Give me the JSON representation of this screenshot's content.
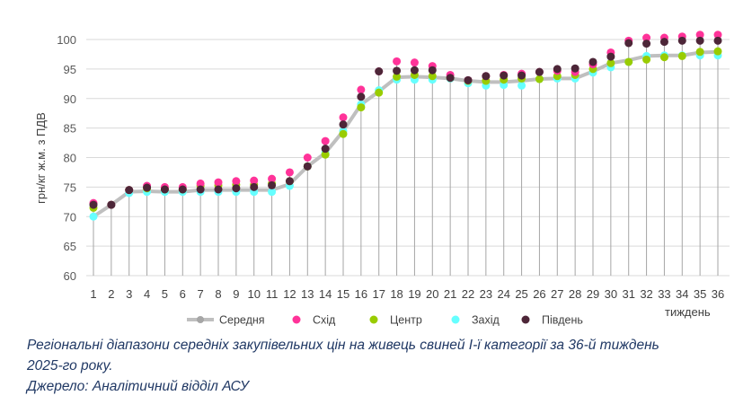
{
  "chart_data": {
    "type": "line",
    "xlabel": "тиждень",
    "ylabel": "грн/кг ж.м. з ПДВ",
    "ylim": [
      60,
      100
    ],
    "yticks": [
      60,
      65,
      70,
      75,
      80,
      85,
      90,
      95,
      100
    ],
    "x": [
      1,
      2,
      3,
      4,
      5,
      6,
      7,
      8,
      9,
      10,
      11,
      12,
      13,
      14,
      15,
      16,
      17,
      18,
      19,
      20,
      21,
      22,
      23,
      24,
      25,
      26,
      27,
      28,
      29,
      30,
      31,
      32,
      33,
      34,
      35,
      36
    ],
    "grid": true,
    "legend": "bottom",
    "series": [
      {
        "name": "Середня",
        "color": "#bfbfbf",
        "style": "line",
        "values": [
          70.0,
          72.0,
          74.2,
          74.3,
          74.2,
          74.2,
          74.5,
          74.5,
          74.5,
          74.5,
          74.5,
          75.5,
          78.5,
          80.8,
          84.5,
          89.0,
          91.2,
          93.6,
          93.7,
          93.6,
          93.4,
          93.0,
          92.8,
          92.8,
          93.0,
          93.3,
          93.4,
          93.4,
          94.6,
          96.0,
          96.5,
          97.2,
          97.3,
          97.3,
          97.8,
          97.9
        ]
      },
      {
        "name": "Схід",
        "color": "#ff3399",
        "style": "marker",
        "values": [
          72.3,
          72.0,
          74.5,
          75.2,
          75.0,
          75.0,
          75.6,
          75.8,
          76.0,
          76.1,
          76.4,
          77.5,
          80.0,
          82.8,
          86.8,
          91.5,
          94.6,
          96.3,
          96.1,
          95.5,
          94.0,
          93.1,
          93.8,
          94.0,
          94.2,
          94.5,
          94.7,
          94.5,
          95.8,
          97.8,
          99.8,
          100.3,
          100.3,
          100.5,
          100.8,
          100.8
        ]
      },
      {
        "name": "Центр",
        "color": "#99cc00",
        "style": "marker",
        "values": [
          71.5,
          72.0,
          74.5,
          74.8,
          74.6,
          74.6,
          75.2,
          75.3,
          75.4,
          75.4,
          75.6,
          76.0,
          78.5,
          80.5,
          84.0,
          88.5,
          91.0,
          93.7,
          94.0,
          93.8,
          93.5,
          93.0,
          93.0,
          93.2,
          93.4,
          93.3,
          93.8,
          94.0,
          95.0,
          96.0,
          96.2,
          96.6,
          97.0,
          97.2,
          97.9,
          98.0
        ]
      },
      {
        "name": "Захід",
        "color": "#66ffff",
        "style": "marker",
        "values": [
          70.0,
          72.0,
          74.0,
          74.2,
          74.2,
          74.2,
          74.2,
          74.2,
          74.2,
          74.2,
          74.2,
          75.2,
          78.5,
          80.8,
          84.5,
          89.0,
          91.4,
          93.2,
          93.2,
          93.2,
          93.4,
          92.6,
          92.2,
          92.3,
          92.2,
          93.3,
          93.4,
          93.4,
          94.4,
          95.3,
          96.2,
          97.2,
          97.3,
          97.3,
          97.3,
          97.3
        ]
      },
      {
        "name": "Південь",
        "color": "#4d2638",
        "style": "marker",
        "values": [
          72.0,
          72.0,
          74.5,
          74.9,
          74.6,
          74.6,
          74.6,
          74.6,
          74.8,
          75.0,
          75.3,
          76.0,
          78.5,
          81.5,
          85.6,
          90.3,
          94.6,
          94.7,
          94.8,
          94.8,
          93.5,
          93.1,
          93.8,
          93.9,
          93.9,
          94.5,
          95.0,
          95.1,
          96.2,
          97.1,
          99.4,
          99.3,
          99.6,
          99.8,
          99.8,
          99.8
        ]
      }
    ]
  },
  "caption": {
    "line1": "Регіональні діапазони середніх закупівельних цін на живець свиней І-ї категорії за 36-й тиждень",
    "line2": "2025-го року.",
    "line3": "Джерело: Аналітичний відділ АСУ"
  }
}
